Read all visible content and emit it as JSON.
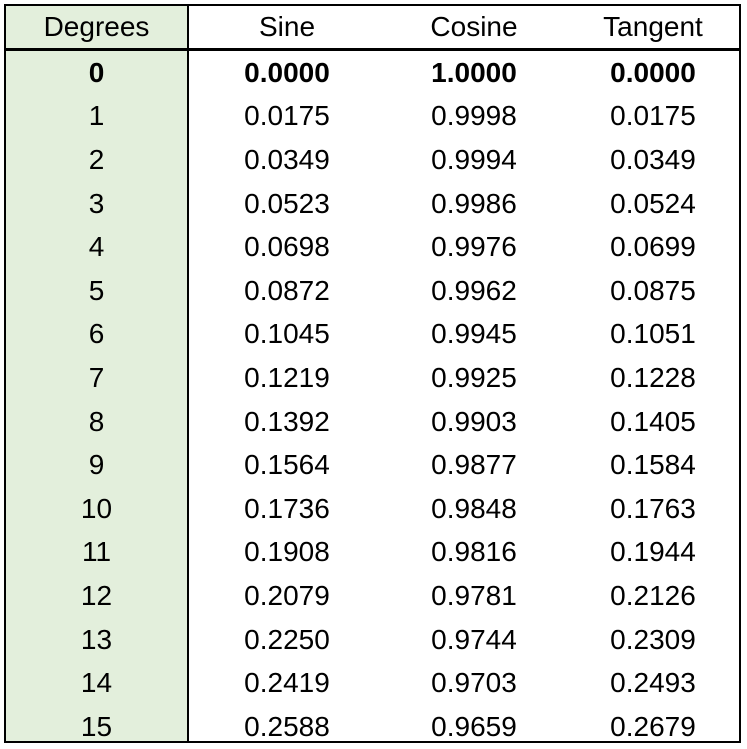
{
  "colors": {
    "degrees_column_background": "#e3efdc",
    "border": "#000000",
    "text": "#000000",
    "background": "#ffffff"
  },
  "table": {
    "headers": [
      "Degrees",
      "Sine",
      "Cosine",
      "Tangent"
    ],
    "rows": [
      [
        "0",
        "0.0000",
        "1.0000",
        "0.0000"
      ],
      [
        "1",
        "0.0175",
        "0.9998",
        "0.0175"
      ],
      [
        "2",
        "0.0349",
        "0.9994",
        "0.0349"
      ],
      [
        "3",
        "0.0523",
        "0.9986",
        "0.0524"
      ],
      [
        "4",
        "0.0698",
        "0.9976",
        "0.0699"
      ],
      [
        "5",
        "0.0872",
        "0.9962",
        "0.0875"
      ],
      [
        "6",
        "0.1045",
        "0.9945",
        "0.1051"
      ],
      [
        "7",
        "0.1219",
        "0.9925",
        "0.1228"
      ],
      [
        "8",
        "0.1392",
        "0.9903",
        "0.1405"
      ],
      [
        "9",
        "0.1564",
        "0.9877",
        "0.1584"
      ],
      [
        "10",
        "0.1736",
        "0.9848",
        "0.1763"
      ],
      [
        "11",
        "0.1908",
        "0.9816",
        "0.1944"
      ],
      [
        "12",
        "0.2079",
        "0.9781",
        "0.2126"
      ],
      [
        "13",
        "0.2250",
        "0.9744",
        "0.2309"
      ],
      [
        "14",
        "0.2419",
        "0.9703",
        "0.2493"
      ],
      [
        "15",
        "0.2588",
        "0.9659",
        "0.2679"
      ]
    ],
    "bold_row_index": 0
  }
}
